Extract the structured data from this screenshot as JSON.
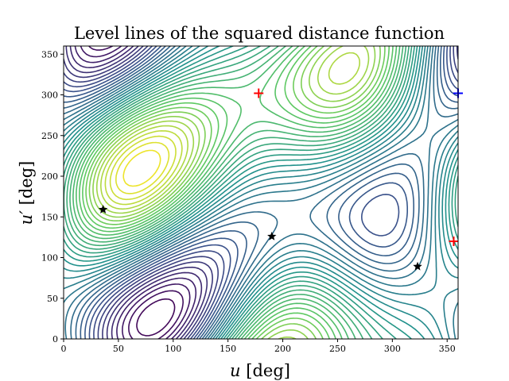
{
  "chart_data": {
    "type": "contour",
    "title": "Level lines of the squared distance function",
    "xlabel": "u [deg]",
    "ylabel": "u′ [deg]",
    "xlim": [
      0,
      360
    ],
    "ylim": [
      0,
      360
    ],
    "xticks": [
      "0",
      "50",
      "100",
      "150",
      "200",
      "250",
      "300",
      "350"
    ],
    "yticks": [
      "0",
      "50",
      "100",
      "150",
      "200",
      "250",
      "300",
      "350"
    ],
    "colormap": [
      "#440154",
      "#3b528b",
      "#21918c",
      "#5ec962",
      "#fde725"
    ],
    "grid": false,
    "markers": [
      {
        "type": "max",
        "u": 178,
        "u_prime": 302,
        "color": "#ff0000"
      },
      {
        "type": "max",
        "u": 356,
        "u_prime": 120,
        "color": "#ff0000"
      },
      {
        "type": "min",
        "u": 360,
        "u_prime": 302,
        "color": "#0000ff"
      },
      {
        "type": "saddle",
        "u": 36,
        "u_prime": 159,
        "color": "#000000"
      },
      {
        "type": "saddle",
        "u": 190,
        "u_prime": 126,
        "color": "#000000"
      },
      {
        "type": "saddle",
        "u": 323,
        "u_prime": 89,
        "color": "#000000"
      }
    ]
  }
}
